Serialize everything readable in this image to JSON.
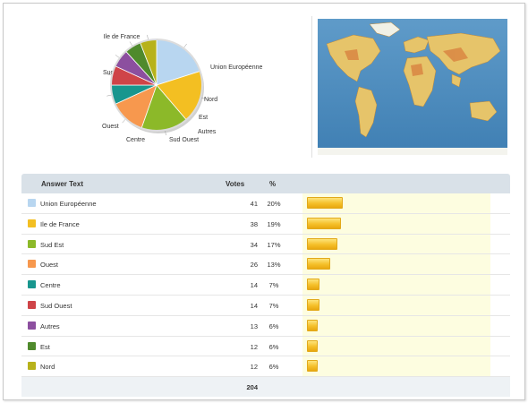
{
  "pie": {
    "slices": [
      {
        "label": "Union Européenne",
        "value": 41,
        "color": "#b8d6f0"
      },
      {
        "label": "Ile de France",
        "value": 38,
        "color": "#f3bf22"
      },
      {
        "label": "Sud Est",
        "value": 34,
        "color": "#8cb929"
      },
      {
        "label": "Ouest",
        "value": 26,
        "color": "#f7984e"
      },
      {
        "label": "Centre",
        "value": 14,
        "color": "#18968e"
      },
      {
        "label": "Sud Ouest",
        "value": 14,
        "color": "#cf4448"
      },
      {
        "label": "Autres",
        "value": 13,
        "color": "#8c4f9f"
      },
      {
        "label": "Est",
        "value": 12,
        "color": "#4f8a2c"
      },
      {
        "label": "Nord",
        "value": 12,
        "color": "#b7b21b"
      }
    ]
  },
  "table": {
    "headers": {
      "answer": "Answer Text",
      "votes": "Votes",
      "percent": "%"
    },
    "rows": [
      {
        "name": "Union Européenne",
        "votes": "41",
        "percent": "20%",
        "share": 0.2,
        "color": "#b8d6f0"
      },
      {
        "name": "Ile de France",
        "votes": "38",
        "percent": "19%",
        "share": 0.19,
        "color": "#f3bf22"
      },
      {
        "name": "Sud Est",
        "votes": "34",
        "percent": "17%",
        "share": 0.17,
        "color": "#8cb929"
      },
      {
        "name": "Ouest",
        "votes": "26",
        "percent": "13%",
        "share": 0.13,
        "color": "#f7984e"
      },
      {
        "name": "Centre",
        "votes": "14",
        "percent": "7%",
        "share": 0.07,
        "color": "#18968e"
      },
      {
        "name": "Sud Ouest",
        "votes": "14",
        "percent": "7%",
        "share": 0.07,
        "color": "#cf4448"
      },
      {
        "name": "Autres",
        "votes": "13",
        "percent": "6%",
        "share": 0.06,
        "color": "#8c4f9f"
      },
      {
        "name": "Est",
        "votes": "12",
        "percent": "6%",
        "share": 0.06,
        "color": "#4f8a2c"
      },
      {
        "name": "Nord",
        "votes": "12",
        "percent": "6%",
        "share": 0.06,
        "color": "#b7b21b"
      }
    ],
    "total": "204"
  },
  "map": {
    "icon": "world-map-image"
  }
}
